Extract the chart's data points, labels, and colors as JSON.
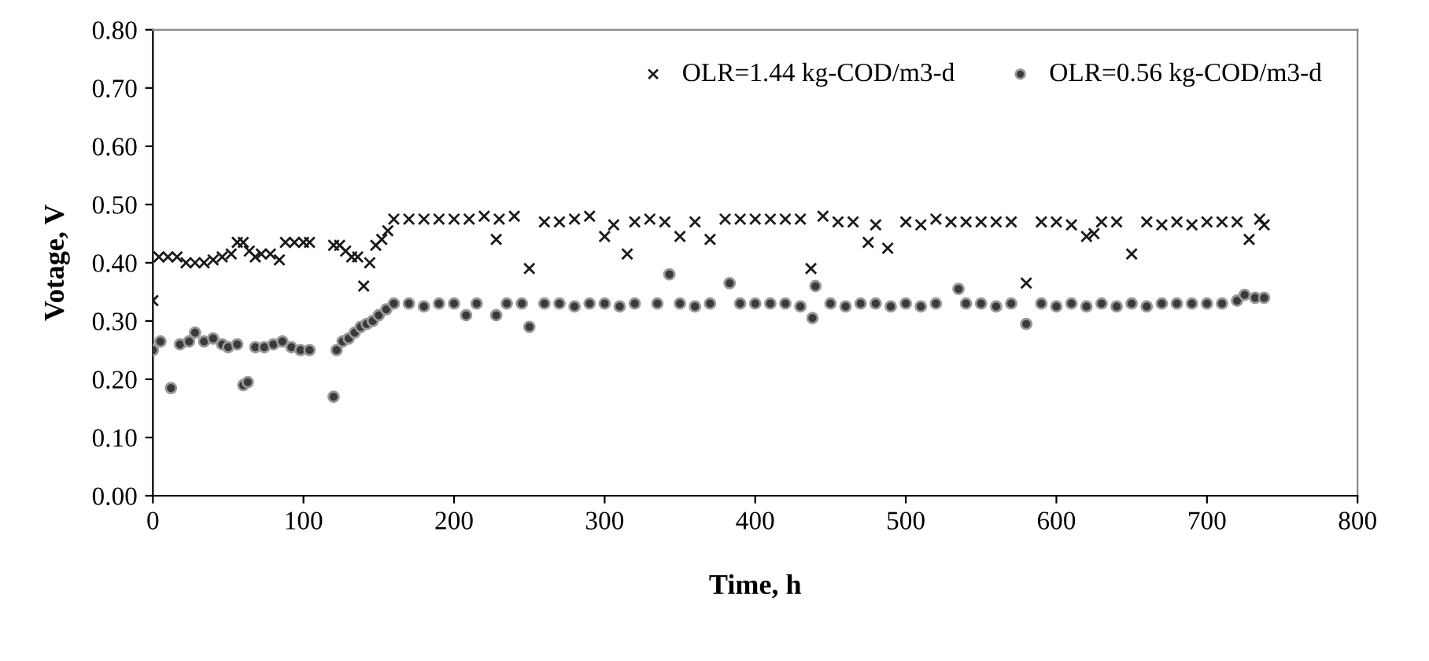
{
  "chart_data": {
    "type": "scatter",
    "xlabel": "Time, h",
    "ylabel": "Votage, V",
    "xlim": [
      0,
      800
    ],
    "ylim": [
      0,
      0.8
    ],
    "xticks": [
      0,
      100,
      200,
      300,
      400,
      500,
      600,
      700,
      800
    ],
    "yticks": [
      {
        "value": 0,
        "label": "0.00"
      },
      {
        "value": 0.1,
        "label": "0.10"
      },
      {
        "value": 0.2,
        "label": "0.20"
      },
      {
        "value": 0.3,
        "label": "0.30"
      },
      {
        "value": 0.4,
        "label": "0.40"
      },
      {
        "value": 0.5,
        "label": "0.50"
      },
      {
        "value": 0.6,
        "label": "0.60"
      },
      {
        "value": 0.7,
        "label": "0.70"
      },
      {
        "value": 0.8,
        "label": "0.80"
      }
    ],
    "grid": false,
    "legend": "top right",
    "series": [
      {
        "name": "OLR=1.44 kg-COD/m3-d",
        "color": "#1a1a1a",
        "marker": "cross",
        "x": [
          0,
          4,
          10,
          16,
          22,
          28,
          34,
          40,
          46,
          52,
          56,
          60,
          64,
          68,
          72,
          78,
          84,
          88,
          94,
          100,
          104,
          120,
          124,
          128,
          132,
          136,
          140,
          144,
          148,
          152,
          156,
          160,
          170,
          180,
          190,
          200,
          210,
          220,
          228,
          230,
          240,
          250,
          260,
          270,
          280,
          290,
          300,
          306,
          315,
          320,
          330,
          340,
          350,
          360,
          370,
          380,
          390,
          400,
          410,
          420,
          430,
          437,
          445,
          455,
          465,
          475,
          480,
          488,
          500,
          510,
          520,
          530,
          540,
          550,
          560,
          570,
          580,
          590,
          600,
          610,
          620,
          625,
          630,
          640,
          650,
          660,
          670,
          680,
          690,
          700,
          710,
          720,
          728,
          735,
          738
        ],
        "values": [
          0.335,
          0.41,
          0.41,
          0.41,
          0.4,
          0.4,
          0.4,
          0.405,
          0.41,
          0.415,
          0.435,
          0.435,
          0.42,
          0.41,
          0.415,
          0.415,
          0.405,
          0.435,
          0.435,
          0.435,
          0.435,
          0.43,
          0.43,
          0.42,
          0.41,
          0.41,
          0.36,
          0.4,
          0.43,
          0.44,
          0.455,
          0.475,
          0.475,
          0.475,
          0.475,
          0.475,
          0.475,
          0.48,
          0.44,
          0.475,
          0.48,
          0.39,
          0.47,
          0.47,
          0.475,
          0.48,
          0.445,
          0.465,
          0.415,
          0.47,
          0.475,
          0.47,
          0.445,
          0.47,
          0.44,
          0.475,
          0.475,
          0.475,
          0.475,
          0.475,
          0.475,
          0.39,
          0.48,
          0.47,
          0.47,
          0.435,
          0.465,
          0.425,
          0.47,
          0.465,
          0.475,
          0.47,
          0.47,
          0.47,
          0.47,
          0.47,
          0.365,
          0.47,
          0.47,
          0.465,
          0.445,
          0.45,
          0.47,
          0.47,
          0.415,
          0.47,
          0.465,
          0.47,
          0.465,
          0.47,
          0.47,
          0.47,
          0.44,
          0.475,
          0.465
        ]
      },
      {
        "name": "OLR=0.56 kg-COD/m3-d",
        "color": "#3a3a3a",
        "marker": "circle",
        "x": [
          0,
          5,
          12,
          18,
          24,
          28,
          34,
          40,
          46,
          50,
          56,
          60,
          63,
          68,
          74,
          80,
          86,
          92,
          98,
          104,
          120,
          122,
          126,
          130,
          134,
          138,
          142,
          146,
          150,
          155,
          160,
          170,
          180,
          190,
          200,
          208,
          215,
          228,
          235,
          245,
          250,
          260,
          270,
          280,
          290,
          300,
          310,
          320,
          335,
          343,
          350,
          360,
          370,
          383,
          390,
          400,
          410,
          420,
          430,
          438,
          440,
          450,
          460,
          470,
          480,
          490,
          500,
          510,
          520,
          535,
          540,
          550,
          560,
          570,
          580,
          590,
          600,
          610,
          620,
          630,
          640,
          650,
          660,
          670,
          680,
          690,
          700,
          710,
          720,
          725,
          732,
          738
        ],
        "values": [
          0.25,
          0.265,
          0.185,
          0.26,
          0.265,
          0.28,
          0.265,
          0.27,
          0.26,
          0.255,
          0.26,
          0.19,
          0.195,
          0.255,
          0.255,
          0.26,
          0.265,
          0.255,
          0.25,
          0.25,
          0.17,
          0.25,
          0.265,
          0.27,
          0.28,
          0.29,
          0.295,
          0.3,
          0.31,
          0.32,
          0.33,
          0.33,
          0.325,
          0.33,
          0.33,
          0.31,
          0.33,
          0.31,
          0.33,
          0.33,
          0.29,
          0.33,
          0.33,
          0.325,
          0.33,
          0.33,
          0.325,
          0.33,
          0.33,
          0.38,
          0.33,
          0.325,
          0.33,
          0.365,
          0.33,
          0.33,
          0.33,
          0.33,
          0.325,
          0.305,
          0.36,
          0.33,
          0.325,
          0.33,
          0.33,
          0.325,
          0.33,
          0.325,
          0.33,
          0.355,
          0.33,
          0.33,
          0.325,
          0.33,
          0.295,
          0.33,
          0.325,
          0.33,
          0.325,
          0.33,
          0.325,
          0.33,
          0.325,
          0.33,
          0.33,
          0.33,
          0.33,
          0.33,
          0.335,
          0.345,
          0.34,
          0.34
        ]
      }
    ]
  }
}
